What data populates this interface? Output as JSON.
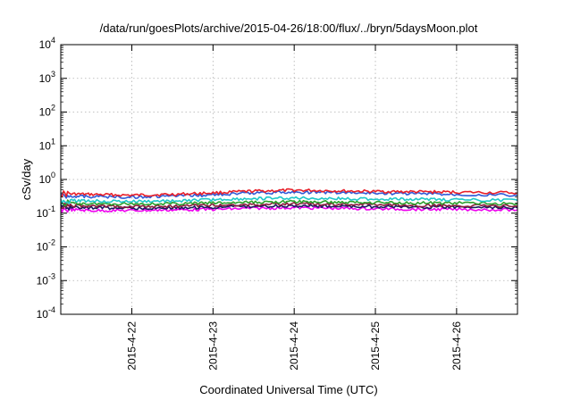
{
  "chart_data": {
    "type": "line",
    "title": "/data/run/goesPlots/archive/2015-04-26/18:00/flux/../bryn/5daysMoon.plot",
    "xlabel": "Coordinated Universal Time (UTC)",
    "ylabel": "cSv/day",
    "yscale": "log",
    "ylim": [
      0.0001,
      10000
    ],
    "y_ticks": [
      {
        "base": "10",
        "exp": "-4",
        "value": 0.0001
      },
      {
        "base": "10",
        "exp": "-3",
        "value": 0.001
      },
      {
        "base": "10",
        "exp": "-2",
        "value": 0.01
      },
      {
        "base": "10",
        "exp": "-1",
        "value": 0.1
      },
      {
        "base": "10",
        "exp": "0",
        "value": 1
      },
      {
        "base": "10",
        "exp": "1",
        "value": 10
      },
      {
        "base": "10",
        "exp": "2",
        "value": 100
      },
      {
        "base": "10",
        "exp": "3",
        "value": 1000
      },
      {
        "base": "10",
        "exp": "4",
        "value": 10000
      }
    ],
    "xlim": [
      "2015-04-21 03:00",
      "2015-04-26 18:00"
    ],
    "x_ticks": [
      {
        "label": "2015-4-22",
        "value": "2015-04-22 00:00"
      },
      {
        "label": "2015-4-23",
        "value": "2015-04-23 00:00"
      },
      {
        "label": "2015-4-24",
        "value": "2015-04-24 00:00"
      },
      {
        "label": "2015-4-25",
        "value": "2015-04-25 00:00"
      },
      {
        "label": "2015-4-26",
        "value": "2015-04-26 00:00"
      }
    ],
    "grid": true,
    "x": [
      "2015-04-21 03:00",
      "2015-04-21 12:00",
      "2015-04-22 00:00",
      "2015-04-22 12:00",
      "2015-04-23 00:00",
      "2015-04-23 12:00",
      "2015-04-24 00:00",
      "2015-04-24 12:00",
      "2015-04-25 00:00",
      "2015-04-25 12:00",
      "2015-04-26 00:00",
      "2015-04-26 18:00"
    ],
    "series": [
      {
        "color": "#e8202a",
        "values": [
          0.38,
          0.36,
          0.34,
          0.36,
          0.4,
          0.45,
          0.48,
          0.46,
          0.44,
          0.43,
          0.42,
          0.4
        ]
      },
      {
        "color": "#2f5bd8",
        "values": [
          0.33,
          0.31,
          0.3,
          0.32,
          0.35,
          0.4,
          0.42,
          0.41,
          0.39,
          0.38,
          0.36,
          0.34
        ]
      },
      {
        "color": "#1fc8c8",
        "values": [
          0.24,
          0.23,
          0.22,
          0.23,
          0.25,
          0.27,
          0.28,
          0.27,
          0.26,
          0.26,
          0.25,
          0.24
        ]
      },
      {
        "color": "#2ca02c",
        "values": [
          0.2,
          0.19,
          0.19,
          0.19,
          0.2,
          0.21,
          0.22,
          0.21,
          0.21,
          0.2,
          0.2,
          0.19
        ]
      },
      {
        "color": "#8b1a3c",
        "values": [
          0.17,
          0.16,
          0.16,
          0.16,
          0.17,
          0.18,
          0.19,
          0.18,
          0.18,
          0.17,
          0.17,
          0.16
        ]
      },
      {
        "color": "#1a1a5e",
        "values": [
          0.15,
          0.145,
          0.14,
          0.145,
          0.15,
          0.16,
          0.165,
          0.16,
          0.155,
          0.15,
          0.15,
          0.145
        ]
      },
      {
        "color": "#ee00ee",
        "values": [
          0.13,
          0.12,
          0.12,
          0.125,
          0.13,
          0.14,
          0.145,
          0.14,
          0.135,
          0.13,
          0.13,
          0.125
        ]
      }
    ]
  }
}
